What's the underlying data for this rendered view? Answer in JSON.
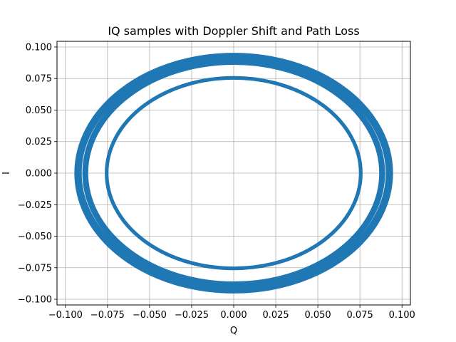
{
  "chart_data": {
    "type": "scatter",
    "title": "IQ samples with Doppler Shift and Path Loss",
    "xlabel": "Q",
    "ylabel": "I",
    "xlim": [
      -0.105,
      0.105
    ],
    "ylim": [
      -0.1045,
      0.1045
    ],
    "grid": true,
    "x_ticks": [
      -0.1,
      -0.075,
      -0.05,
      -0.025,
      0.0,
      0.025,
      0.05,
      0.075,
      0.1
    ],
    "x_tick_labels": [
      "−0.100",
      "−0.075",
      "−0.050",
      "−0.025",
      "0.000",
      "0.025",
      "0.050",
      "0.075",
      "0.100"
    ],
    "y_ticks": [
      -0.1,
      -0.075,
      -0.05,
      -0.025,
      0.0,
      0.025,
      0.05,
      0.075,
      0.1
    ],
    "y_tick_labels": [
      "−0.100",
      "−0.075",
      "−0.050",
      "−0.025",
      "0.000",
      "0.025",
      "0.050",
      "0.075",
      "0.100"
    ],
    "series": [
      {
        "shape": "ring",
        "radius": 0.0925,
        "thickness": 0.005
      },
      {
        "shape": "ring",
        "radius": 0.0882,
        "thickness": 0.004
      },
      {
        "shape": "ring",
        "radius": 0.0755,
        "thickness": 0.0025
      }
    ],
    "color": "#1f77b4"
  }
}
